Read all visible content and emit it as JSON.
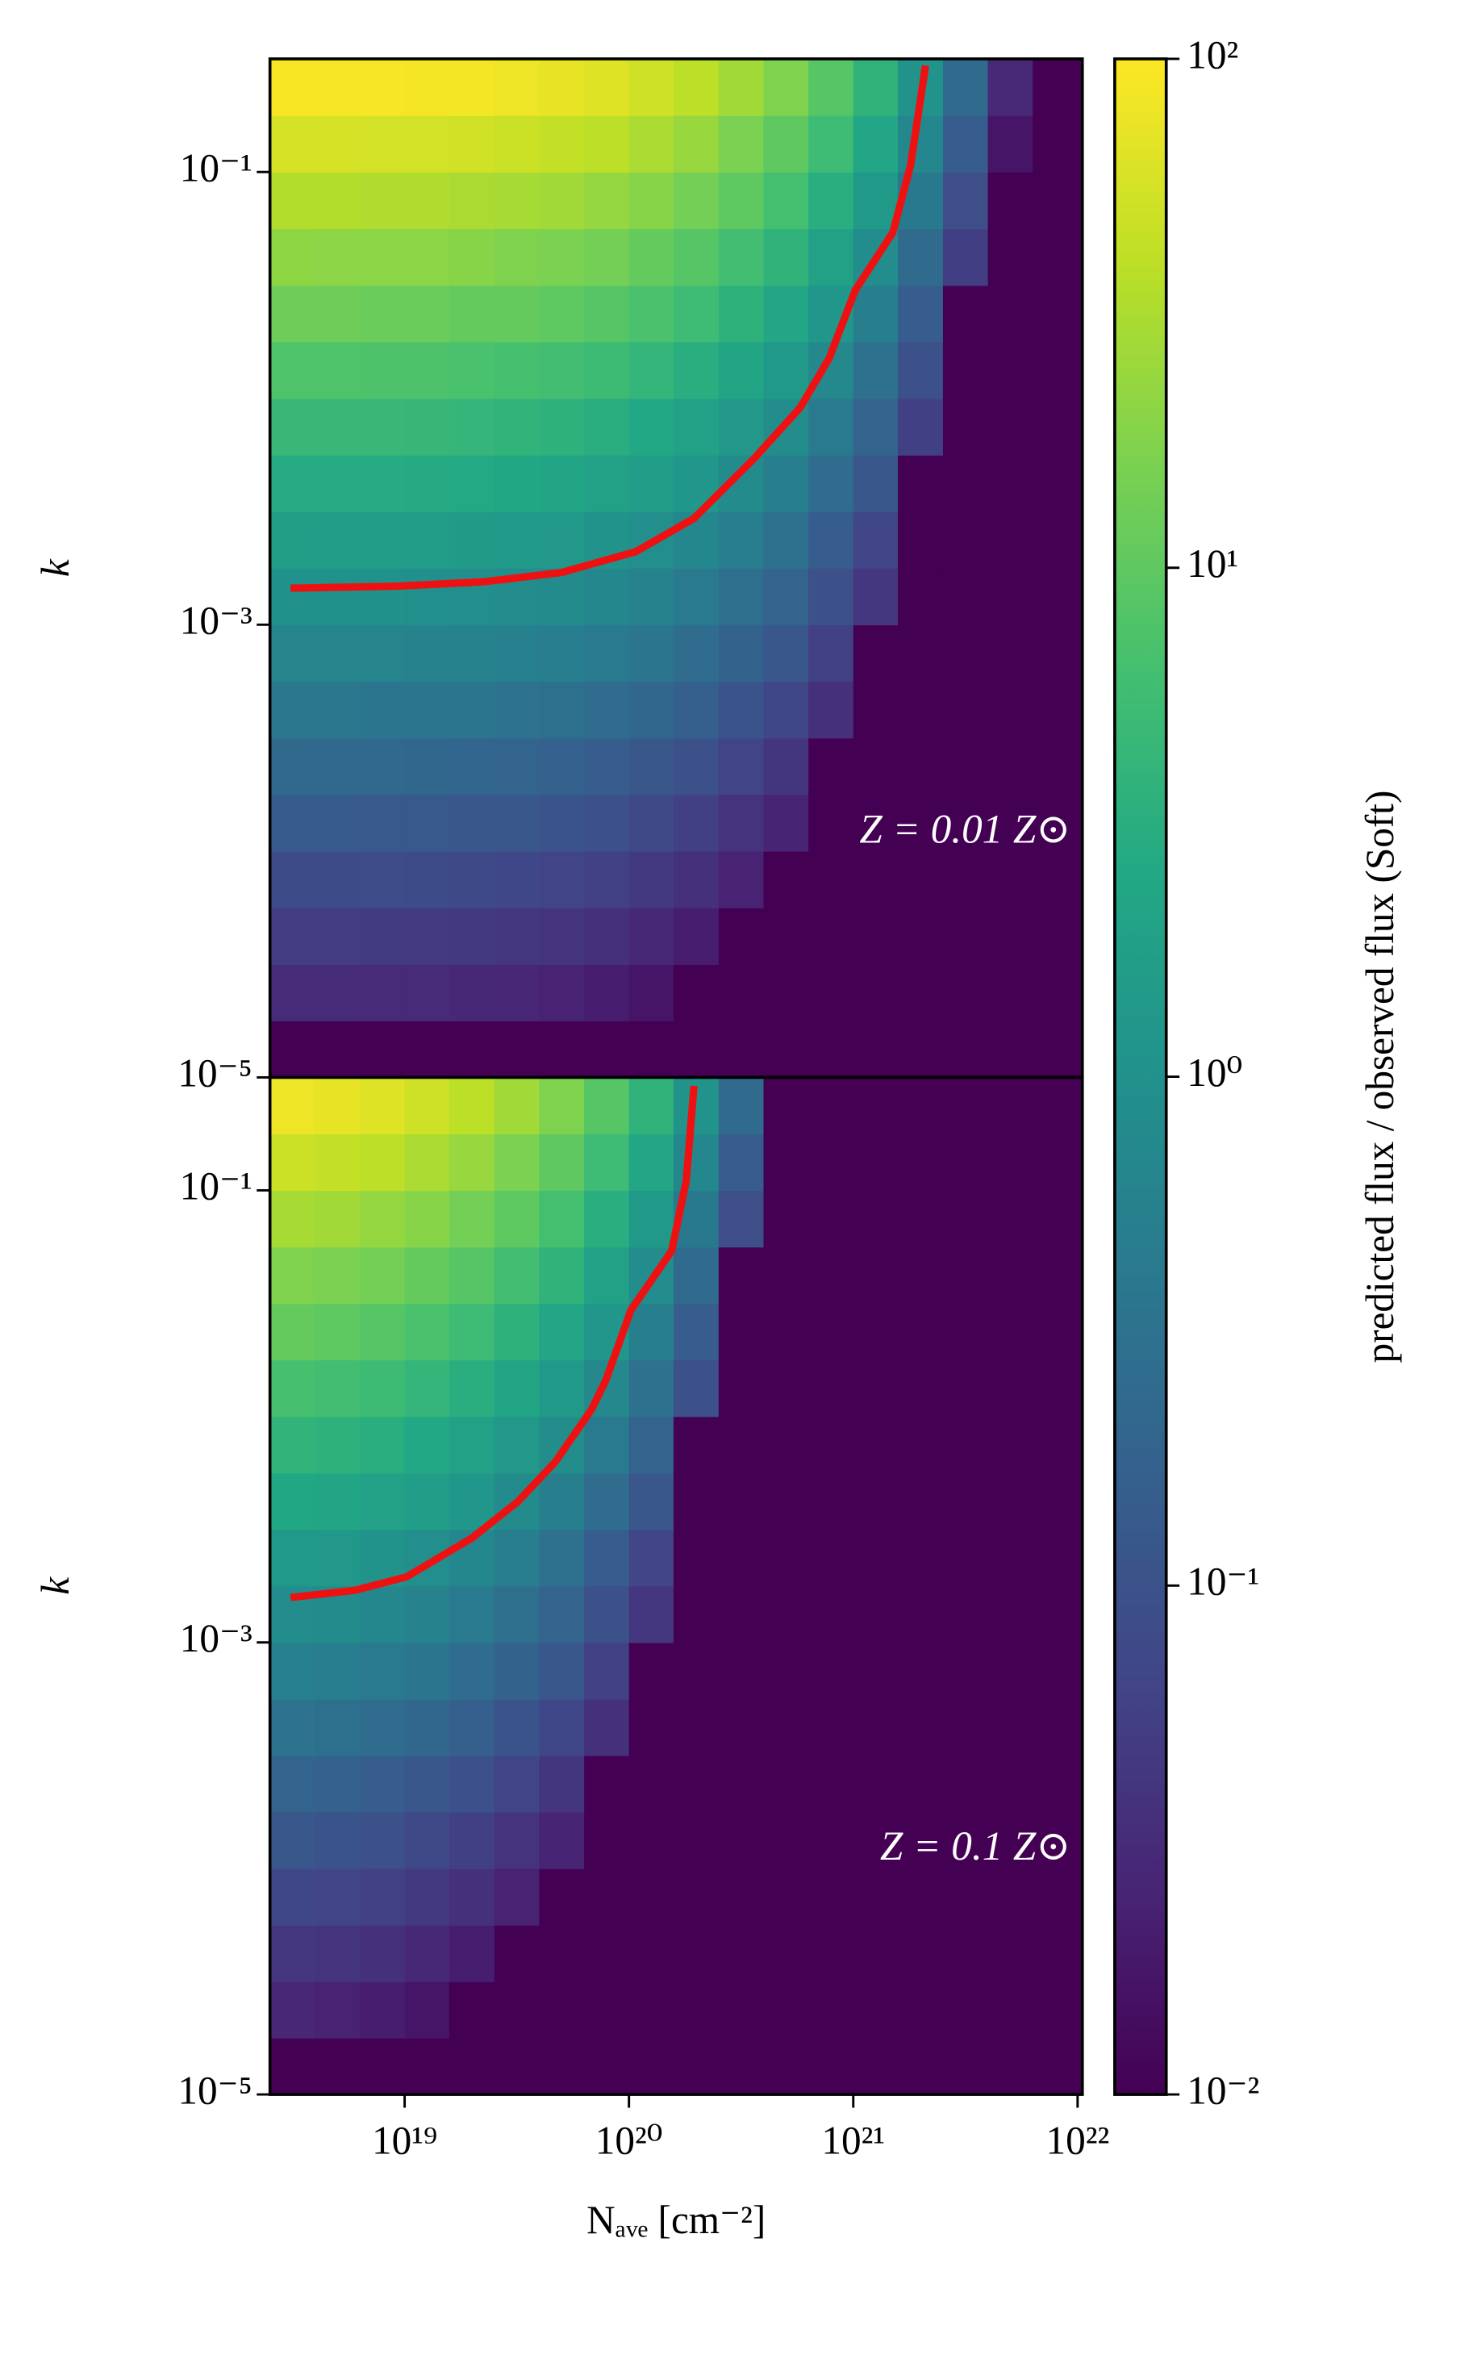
{
  "chart_data": [
    {
      "type": "heatmap",
      "ylabel": "k",
      "annotation": "Z = 0.01 Z⊙",
      "x_edges": [
        2.51e+18,
        3.98e+18,
        6.31e+18,
        1e+19,
        1.58e+19,
        2.51e+19,
        3.98e+19,
        6.31e+19,
        1e+20,
        1.58e+20,
        2.51e+20,
        3.98e+20,
        6.31e+20,
        1e+21,
        1.58e+21,
        2.51e+21,
        3.98e+21,
        6.31e+21,
        1.05e+22
      ],
      "y_edges": [
        1e-05,
        1.78e-05,
        3.16e-05,
        5.62e-05,
        0.0001,
        0.000178,
        0.000316,
        0.000562,
        0.001,
        0.00178,
        0.00316,
        0.00562,
        0.01,
        0.0178,
        0.0316,
        0.0562,
        0.1,
        0.178,
        0.316
      ],
      "xlim": [
        2.51e+18,
        1.05e+22
      ],
      "ylim": [
        1e-05,
        0.316
      ],
      "xlog": true,
      "ylog": true,
      "yticks": [
        {
          "value": 1e-05,
          "label": "10⁻⁵"
        },
        {
          "value": 0.001,
          "label": "10⁻³"
        },
        {
          "value": 0.1,
          "label": "10⁻¹"
        }
      ],
      "z": [
        [
          0.01,
          0.01,
          0.01,
          0.01,
          0.01,
          0.01,
          0.01,
          0.01,
          0.01,
          0.01,
          0.01,
          0.01,
          0.01,
          0.01,
          0.01,
          0.01,
          0.01,
          0.01
        ],
        [
          0.031,
          0.031,
          0.03,
          0.03,
          0.028,
          0.027,
          0.024,
          0.021,
          0.017,
          0.01,
          0.01,
          0.01,
          0.01,
          0.01,
          0.01,
          0.01,
          0.01,
          0.01
        ],
        [
          0.051,
          0.05,
          0.049,
          0.048,
          0.046,
          0.043,
          0.04,
          0.035,
          0.028,
          0.021,
          0.01,
          0.01,
          0.01,
          0.01,
          0.01,
          0.01,
          0.01,
          0.01
        ],
        [
          0.084,
          0.083,
          0.082,
          0.08,
          0.077,
          0.071,
          0.065,
          0.058,
          0.046,
          0.035,
          0.024,
          0.01,
          0.01,
          0.01,
          0.01,
          0.01,
          0.01,
          0.01
        ],
        [
          0.14,
          0.14,
          0.13,
          0.13,
          0.12,
          0.12,
          0.11,
          0.094,
          0.076,
          0.057,
          0.039,
          0.025,
          0.01,
          0.01,
          0.01,
          0.01,
          0.01,
          0.01
        ],
        [
          0.23,
          0.22,
          0.22,
          0.21,
          0.2,
          0.19,
          0.17,
          0.15,
          0.12,
          0.094,
          0.064,
          0.041,
          0.01,
          0.01,
          0.01,
          0.01,
          0.01,
          0.01
        ],
        [
          0.38,
          0.38,
          0.37,
          0.36,
          0.35,
          0.32,
          0.3,
          0.26,
          0.21,
          0.16,
          0.11,
          0.07,
          0.035,
          0.01,
          0.01,
          0.01,
          0.01,
          0.01
        ],
        [
          0.63,
          0.62,
          0.61,
          0.6,
          0.57,
          0.53,
          0.49,
          0.43,
          0.35,
          0.26,
          0.18,
          0.12,
          0.058,
          0.01,
          0.01,
          0.01,
          0.01,
          0.01
        ],
        [
          1,
          1,
          1,
          0.98,
          0.93,
          0.87,
          0.8,
          0.7,
          0.57,
          0.43,
          0.29,
          0.19,
          0.096,
          0.042,
          0.01,
          0.01,
          0.01,
          0.01
        ],
        [
          1.7,
          1.6,
          1.6,
          1.6,
          1.5,
          1.4,
          1.3,
          1.1,
          0.92,
          0.7,
          0.48,
          0.31,
          0.15,
          0.068,
          0.01,
          0.01,
          0.01,
          0.01
        ],
        [
          2.8,
          2.8,
          2.8,
          2.7,
          2.6,
          2.4,
          2.2,
          1.9,
          1.6,
          1.2,
          0.81,
          0.52,
          0.26,
          0.12,
          0.01,
          0.01,
          0.01,
          0.01
        ],
        [
          4.6,
          4.6,
          4.5,
          4.4,
          4.2,
          3.9,
          3.6,
          3.1,
          2.5,
          1.9,
          1.3,
          0.85,
          0.43,
          0.19,
          0.056,
          0.01,
          0.01,
          0.01
        ],
        [
          7.6,
          7.6,
          7.4,
          7.3,
          6.9,
          6.5,
          5.9,
          5.2,
          4.2,
          3.2,
          2.2,
          1.4,
          0.71,
          0.31,
          0.094,
          0.01,
          0.01,
          0.01
        ],
        [
          13,
          13,
          12,
          12,
          11,
          11,
          9.8,
          8.6,
          7,
          5.3,
          3.6,
          2.3,
          1.2,
          0.52,
          0.15,
          0.01,
          0.01,
          0.01
        ],
        [
          21,
          20,
          20,
          20,
          19,
          17,
          16,
          14,
          11,
          8.6,
          5.9,
          3.8,
          1.9,
          0.84,
          0.25,
          0.053,
          0.01,
          0.01
        ],
        [
          34,
          34,
          33,
          33,
          31,
          29,
          27,
          23,
          19,
          14,
          9.8,
          6.3,
          3.2,
          1.4,
          0.42,
          0.088,
          0.01,
          0.01
        ],
        [
          57,
          56,
          55,
          54,
          52,
          48,
          44,
          39,
          31,
          24,
          16,
          10,
          5.3,
          2.3,
          0.7,
          0.15,
          0.017,
          0.01
        ],
        [
          93,
          92,
          90,
          88,
          85,
          79,
          72,
          64,
          51,
          39,
          27,
          17,
          8.6,
          3.8,
          1.1,
          0.24,
          0.029,
          0.01
        ]
      ],
      "line": {
        "color": "#ee1111",
        "x": [
          3.1e+18,
          9.3e+18,
          2.3e+19,
          5e+19,
          1.07e+20,
          1.95e+20,
          3.6e+20,
          5.8e+20,
          7.8e+20,
          1.02e+21,
          1.5e+21,
          1.8e+21,
          2.1e+21
        ],
        "y": [
          0.00145,
          0.00148,
          0.00155,
          0.0017,
          0.0021,
          0.00295,
          0.0054,
          0.0091,
          0.015,
          0.03,
          0.054,
          0.107,
          0.295
        ]
      }
    },
    {
      "type": "heatmap",
      "ylabel": "k",
      "xlabel": "Nₐᵥₑ [cm⁻²]",
      "annotation": "Z = 0.1 Z⊙",
      "x_edges": [
        2.51e+18,
        3.98e+18,
        6.31e+18,
        1e+19,
        1.58e+19,
        2.51e+19,
        3.98e+19,
        6.31e+19,
        1e+20,
        1.58e+20,
        2.51e+20,
        3.98e+20,
        6.31e+20,
        1e+21,
        1.58e+21,
        2.51e+21,
        3.98e+21,
        6.31e+21,
        1.05e+22
      ],
      "y_edges": [
        1e-05,
        1.78e-05,
        3.16e-05,
        5.62e-05,
        0.0001,
        0.000178,
        0.000316,
        0.000562,
        0.001,
        0.00178,
        0.00316,
        0.00562,
        0.01,
        0.0178,
        0.0316,
        0.0562,
        0.1,
        0.178,
        0.316
      ],
      "xlim": [
        2.51e+18,
        1.05e+22
      ],
      "ylim": [
        1e-05,
        0.316
      ],
      "xlog": true,
      "ylog": true,
      "xticks": [
        {
          "value": 1e+19,
          "label": "10¹⁹"
        },
        {
          "value": 1e+20,
          "label": "10²⁰"
        },
        {
          "value": 1e+21,
          "label": "10²¹"
        },
        {
          "value": 1e+22,
          "label": "10²²"
        }
      ],
      "yticks": [
        {
          "value": 1e-05,
          "label": "10⁻⁵"
        },
        {
          "value": 0.001,
          "label": "10⁻³"
        },
        {
          "value": 0.1,
          "label": "10⁻¹"
        }
      ],
      "z": [
        [
          0.01,
          0.01,
          0.01,
          0.01,
          0.01,
          0.01,
          0.01,
          0.01,
          0.01,
          0.01,
          0.01,
          0.01,
          0.01,
          0.01,
          0.01,
          0.01,
          0.01,
          0.01
        ],
        [
          0.027,
          0.024,
          0.021,
          0.017,
          0.01,
          0.01,
          0.01,
          0.01,
          0.01,
          0.01,
          0.01,
          0.01,
          0.01,
          0.01,
          0.01,
          0.01,
          0.01,
          0.01
        ],
        [
          0.043,
          0.04,
          0.035,
          0.028,
          0.021,
          0.01,
          0.01,
          0.01,
          0.01,
          0.01,
          0.01,
          0.01,
          0.01,
          0.01,
          0.01,
          0.01,
          0.01,
          0.01
        ],
        [
          0.071,
          0.065,
          0.058,
          0.046,
          0.035,
          0.024,
          0.01,
          0.01,
          0.01,
          0.01,
          0.01,
          0.01,
          0.01,
          0.01,
          0.01,
          0.01,
          0.01,
          0.01
        ],
        [
          0.12,
          0.11,
          0.094,
          0.076,
          0.057,
          0.039,
          0.025,
          0.01,
          0.01,
          0.01,
          0.01,
          0.01,
          0.01,
          0.01,
          0.01,
          0.01,
          0.01,
          0.01
        ],
        [
          0.19,
          0.17,
          0.15,
          0.12,
          0.094,
          0.064,
          0.041,
          0.01,
          0.01,
          0.01,
          0.01,
          0.01,
          0.01,
          0.01,
          0.01,
          0.01,
          0.01,
          0.01
        ],
        [
          0.32,
          0.3,
          0.26,
          0.21,
          0.16,
          0.11,
          0.07,
          0.035,
          0.01,
          0.01,
          0.01,
          0.01,
          0.01,
          0.01,
          0.01,
          0.01,
          0.01,
          0.01
        ],
        [
          0.53,
          0.49,
          0.43,
          0.35,
          0.26,
          0.18,
          0.12,
          0.058,
          0.01,
          0.01,
          0.01,
          0.01,
          0.01,
          0.01,
          0.01,
          0.01,
          0.01,
          0.01
        ],
        [
          0.87,
          0.8,
          0.7,
          0.57,
          0.43,
          0.29,
          0.19,
          0.096,
          0.042,
          0.01,
          0.01,
          0.01,
          0.01,
          0.01,
          0.01,
          0.01,
          0.01,
          0.01
        ],
        [
          1.4,
          1.3,
          1.1,
          0.92,
          0.7,
          0.48,
          0.31,
          0.15,
          0.068,
          0.01,
          0.01,
          0.01,
          0.01,
          0.01,
          0.01,
          0.01,
          0.01,
          0.01
        ],
        [
          2.4,
          2.2,
          1.9,
          1.6,
          1.2,
          0.81,
          0.52,
          0.26,
          0.12,
          0.01,
          0.01,
          0.01,
          0.01,
          0.01,
          0.01,
          0.01,
          0.01,
          0.01
        ],
        [
          3.9,
          3.6,
          3.1,
          2.5,
          1.9,
          1.3,
          0.85,
          0.43,
          0.19,
          0.01,
          0.01,
          0.01,
          0.01,
          0.01,
          0.01,
          0.01,
          0.01,
          0.01
        ],
        [
          6.5,
          5.9,
          5.2,
          4.2,
          3.2,
          2.2,
          1.4,
          0.71,
          0.31,
          0.094,
          0.01,
          0.01,
          0.01,
          0.01,
          0.01,
          0.01,
          0.01,
          0.01
        ],
        [
          11,
          9.8,
          8.6,
          7,
          5.3,
          3.6,
          2.3,
          1.2,
          0.52,
          0.15,
          0.01,
          0.01,
          0.01,
          0.01,
          0.01,
          0.01,
          0.01,
          0.01
        ],
        [
          17,
          16,
          14,
          11,
          8.6,
          5.9,
          3.8,
          1.9,
          0.84,
          0.25,
          0.01,
          0.01,
          0.01,
          0.01,
          0.01,
          0.01,
          0.01,
          0.01
        ],
        [
          29,
          27,
          23,
          19,
          14,
          9.8,
          6.3,
          3.2,
          1.4,
          0.42,
          0.088,
          0.01,
          0.01,
          0.01,
          0.01,
          0.01,
          0.01,
          0.01
        ],
        [
          48,
          44,
          39,
          31,
          24,
          16,
          10,
          5.3,
          2.3,
          0.7,
          0.15,
          0.01,
          0.01,
          0.01,
          0.01,
          0.01,
          0.01,
          0.01
        ],
        [
          79,
          72,
          64,
          51,
          39,
          27,
          17,
          8.6,
          3.8,
          1.1,
          0.24,
          0.01,
          0.01,
          0.01,
          0.01,
          0.01,
          0.01,
          0.01
        ]
      ],
      "line": {
        "color": "#ee1111",
        "x": [
          3.1e+18,
          6e+18,
          1.02e+19,
          2e+19,
          3.2e+19,
          4.7e+19,
          6.8e+19,
          7.9e+19,
          1.02e+20,
          1.55e+20,
          1.8e+20,
          1.95e+20
        ],
        "y": [
          0.00158,
          0.0017,
          0.00195,
          0.0029,
          0.0042,
          0.0063,
          0.0107,
          0.0145,
          0.0295,
          0.054,
          0.11,
          0.29
        ]
      }
    }
  ],
  "colorbar": {
    "label": "predicted flux / observed flux (Soft)",
    "cmap": "viridis",
    "log": true,
    "lim": [
      0.01,
      100
    ],
    "ticks": [
      {
        "value": 0.01,
        "label": "10⁻²"
      },
      {
        "value": 0.1,
        "label": "10⁻¹"
      },
      {
        "value": 1,
        "label": "10⁰"
      },
      {
        "value": 10,
        "label": "10¹"
      },
      {
        "value": 100,
        "label": "10²"
      }
    ]
  }
}
